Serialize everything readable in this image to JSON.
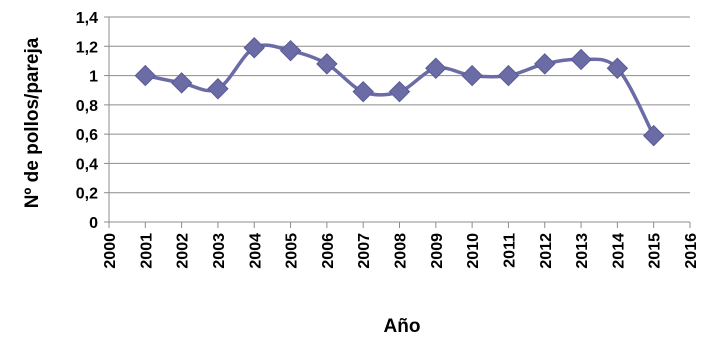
{
  "chart_data": {
    "type": "line",
    "title": "",
    "xlabel": "Año",
    "ylabel": "Nº de pollos/pareja",
    "xlim": [
      2000,
      2016
    ],
    "ylim": [
      0,
      1.4
    ],
    "x_ticks": [
      2000,
      2001,
      2002,
      2003,
      2004,
      2005,
      2006,
      2007,
      2008,
      2009,
      2010,
      2011,
      2012,
      2013,
      2014,
      2015,
      2016
    ],
    "y_ticks": [
      {
        "value": 0,
        "label": "0"
      },
      {
        "value": 0.2,
        "label": "0,2"
      },
      {
        "value": 0.4,
        "label": "0,4"
      },
      {
        "value": 0.6,
        "label": "0,6"
      },
      {
        "value": 0.8,
        "label": "0,8"
      },
      {
        "value": 1.0,
        "label": "1"
      },
      {
        "value": 1.2,
        "label": "1,2"
      },
      {
        "value": 1.4,
        "label": "1,4"
      }
    ],
    "grid": "horizontal",
    "legend": "none",
    "series": [
      {
        "color": "#6B6BA5",
        "marker": "diamond",
        "smooth": true,
        "points": [
          {
            "x": 2001,
            "y": 1.0
          },
          {
            "x": 2002,
            "y": 0.95
          },
          {
            "x": 2003,
            "y": 0.91
          },
          {
            "x": 2004,
            "y": 1.19
          },
          {
            "x": 2005,
            "y": 1.17
          },
          {
            "x": 2006,
            "y": 1.08
          },
          {
            "x": 2007,
            "y": 0.89
          },
          {
            "x": 2008,
            "y": 0.89
          },
          {
            "x": 2009,
            "y": 1.05
          },
          {
            "x": 2010,
            "y": 1.0
          },
          {
            "x": 2011,
            "y": 1.0
          },
          {
            "x": 2012,
            "y": 1.08
          },
          {
            "x": 2013,
            "y": 1.11
          },
          {
            "x": 2014,
            "y": 1.05
          },
          {
            "x": 2015,
            "y": 0.59
          }
        ]
      }
    ]
  }
}
